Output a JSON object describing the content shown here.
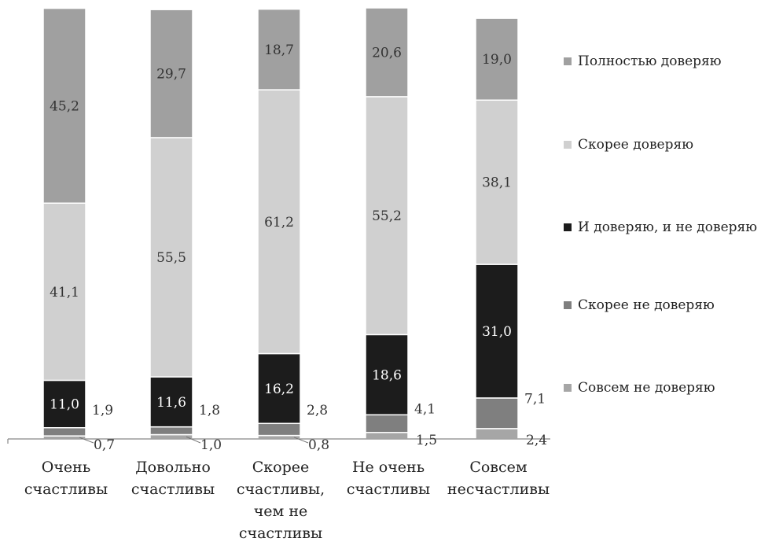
{
  "chart_data": {
    "type": "bar",
    "stacked": true,
    "categories": [
      [
        "Очень",
        "счастливы"
      ],
      [
        "Довольно",
        "счастливы"
      ],
      [
        "Скорее",
        "счастливы,",
        "чем не",
        "счастливы"
      ],
      [
        "Не очень",
        "счастливы"
      ],
      [
        "Совсем",
        "несчастливы"
      ]
    ],
    "series": [
      {
        "name": "Совсем не доверяю",
        "color": "#a6a6a6",
        "values": [
          0.7,
          1.0,
          0.8,
          1.5,
          2.4
        ]
      },
      {
        "name": "Скорее не доверяю",
        "color": "#7f7f7f",
        "values": [
          1.9,
          1.8,
          2.8,
          4.1,
          7.1
        ]
      },
      {
        "name": "И доверяю, и не доверяю",
        "color": "#1c1c1c",
        "values": [
          11.0,
          11.6,
          16.2,
          18.6,
          31.0
        ]
      },
      {
        "name": "Скорее доверяю",
        "color": "#d0d0d0",
        "values": [
          41.1,
          55.5,
          61.2,
          55.2,
          38.1
        ]
      },
      {
        "name": "Полностью доверяю",
        "color": "#a0a0a0",
        "values": [
          45.2,
          29.7,
          18.7,
          20.6,
          19.0
        ]
      }
    ],
    "legend_order": [
      "Полностью доверяю",
      "Скорее доверяю",
      "И доверяю, и не доверяю",
      "Скорее не доверяю",
      "Совсем не доверяю"
    ],
    "legend_position": "right",
    "ylim": [
      0,
      100
    ],
    "grid": false,
    "outside_labels": [
      {
        "series": "Скорее не доверяю",
        "values": [
          "1,9",
          "1,8",
          "2,8",
          "4,1",
          "7,1"
        ]
      },
      {
        "series": "Совсем не доверяю",
        "values": [
          "0,7",
          "1,0",
          "0,8",
          "1,5",
          "2,4"
        ]
      }
    ],
    "inside_labels": {
      "И доверяю, и не доверяю": [
        "11,0",
        "11,6",
        "16,2",
        "18,6",
        "31,0"
      ],
      "Скорее доверяю": [
        "41,1",
        "55,5",
        "61,2",
        "55,2",
        "38,1"
      ],
      "Полностью доверяю": [
        "45,2",
        "29,7",
        "18,7",
        "20,6",
        "19,0"
      ]
    },
    "label_colors": {
      "И доверяю, и не доверяю": "#ffffff",
      "Скорее доверяю": "#333333",
      "Полностью доверяю": "#333333"
    }
  }
}
